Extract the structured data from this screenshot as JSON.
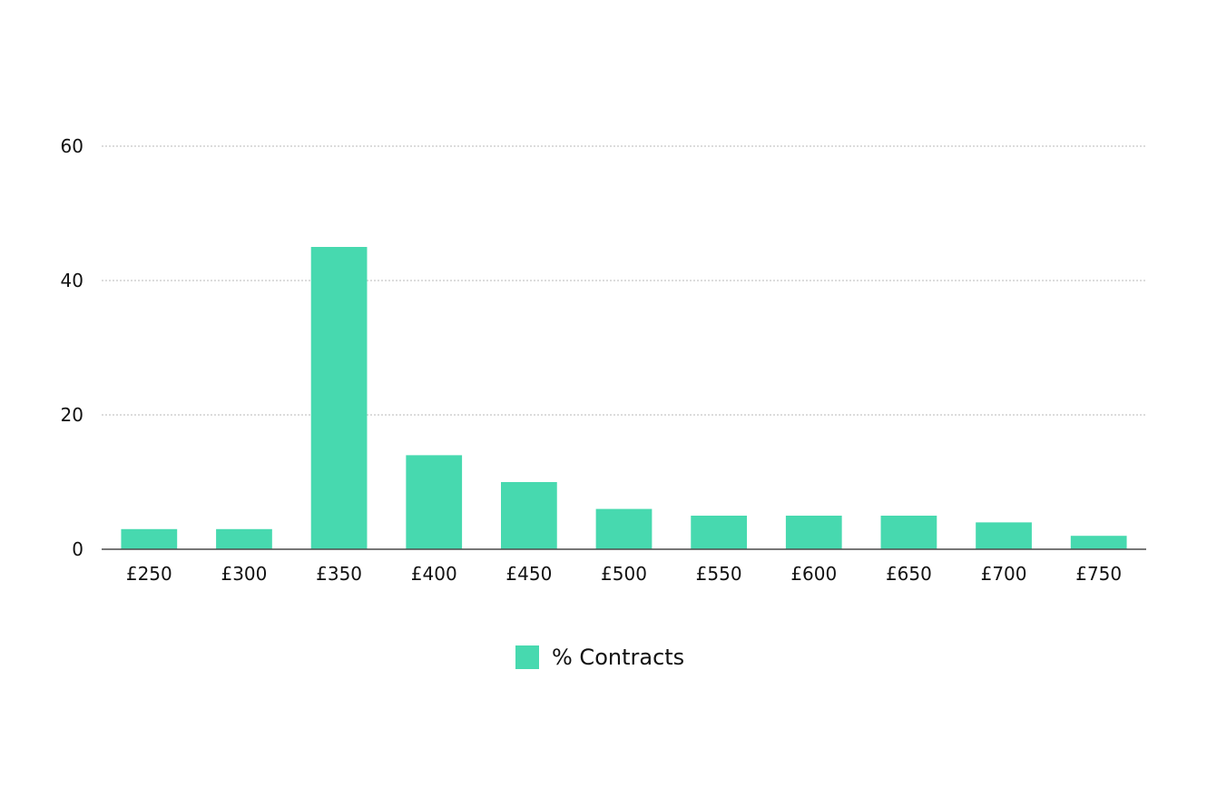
{
  "chart_data": {
    "type": "bar",
    "title": "",
    "xlabel": "",
    "ylabel": "",
    "categories": [
      "£250",
      "£300",
      "£350",
      "£400",
      "£450",
      "£500",
      "£550",
      "£600",
      "£650",
      "£700",
      "£750"
    ],
    "series": [
      {
        "name": "% Contracts",
        "values": [
          3,
          3,
          45,
          14,
          10,
          6,
          5,
          5,
          5,
          4,
          2
        ],
        "color": "#47D9AF"
      }
    ],
    "ylim": [
      0,
      60
    ],
    "yticks": [
      0,
      20,
      40,
      60
    ],
    "grid": true,
    "legend": {
      "position": "bottom-center",
      "entries": [
        "% Contracts"
      ]
    }
  }
}
